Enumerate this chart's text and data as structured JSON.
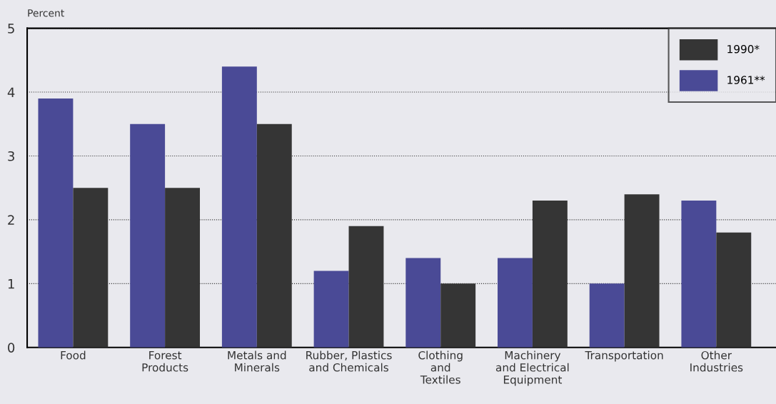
{
  "chart_data": {
    "type": "bar",
    "ylabel": "Percent",
    "categories": [
      "Food",
      "Forest\nProducts",
      "Metals and\nMinerals",
      "Rubber, Plastics\nand Chemicals",
      "Clothing\nand\nTextiles",
      "Machinery\nand Electrical\nEquipment",
      "Transportation",
      "Other\nIndustries"
    ],
    "series": [
      {
        "name": "1961**",
        "color": "#4a4a96",
        "values": [
          3.9,
          3.5,
          4.4,
          1.2,
          1.4,
          1.4,
          1.0,
          2.3
        ]
      },
      {
        "name": "1990*",
        "color": "#353535",
        "values": [
          2.5,
          2.5,
          3.5,
          1.9,
          1.0,
          2.3,
          2.4,
          1.8
        ]
      }
    ],
    "ylim": [
      0,
      5
    ],
    "yticks": [
      0,
      1,
      2,
      3,
      4,
      5
    ],
    "grid": "y",
    "legend": "top right"
  }
}
